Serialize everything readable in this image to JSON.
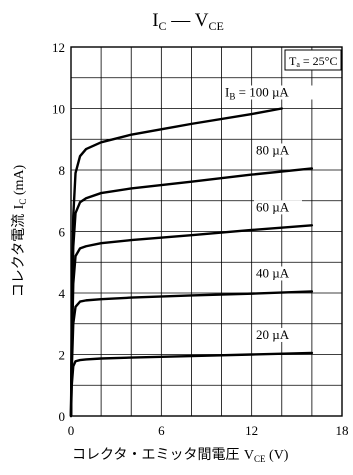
{
  "chart_data": {
    "type": "line",
    "title": {
      "main": "I",
      "main_sub": "C",
      "dash": " — ",
      "second": "V",
      "second_sub": "CE"
    },
    "xlabel": {
      "text": "コレクタ・エミッタ間電圧 ",
      "var": "V",
      "var_sub": "CE",
      "unit": " (V)"
    },
    "ylabel": {
      "text": "コレクタ電流 ",
      "var": "I",
      "var_sub": "C",
      "unit": " (mA)"
    },
    "xlim": [
      0,
      18
    ],
    "ylim": [
      0,
      12
    ],
    "x_ticks": [
      0,
      6,
      12,
      18
    ],
    "y_ticks": [
      0,
      2,
      4,
      6,
      8,
      10,
      12
    ],
    "x_minor_grid_step": 2,
    "y_minor_grid_step": 1,
    "grid": true,
    "annotation": {
      "var": "T",
      "var_sub": "a",
      "value": " = 25°C",
      "placement": "top-right box"
    },
    "series": [
      {
        "name": "20 µA",
        "label_prefix": "",
        "label_sub": "",
        "label_value": "20 µA",
        "points": [
          [
            0,
            0
          ],
          [
            0.05,
            1.0
          ],
          [
            0.15,
            1.62
          ],
          [
            0.3,
            1.78
          ],
          [
            0.6,
            1.82
          ],
          [
            1,
            1.84
          ],
          [
            2,
            1.87
          ],
          [
            4,
            1.9
          ],
          [
            8,
            1.95
          ],
          [
            12,
            2.0
          ],
          [
            16,
            2.05
          ]
        ]
      },
      {
        "name": "40 µA",
        "label_prefix": "",
        "label_sub": "",
        "label_value": "40 µA",
        "points": [
          [
            0,
            0
          ],
          [
            0.05,
            1.5
          ],
          [
            0.15,
            3.0
          ],
          [
            0.3,
            3.55
          ],
          [
            0.6,
            3.72
          ],
          [
            1,
            3.76
          ],
          [
            2,
            3.8
          ],
          [
            4,
            3.85
          ],
          [
            8,
            3.92
          ],
          [
            12,
            3.98
          ],
          [
            16,
            4.05
          ]
        ]
      },
      {
        "name": "60 µA",
        "label_prefix": "",
        "label_sub": "",
        "label_value": "60 µA",
        "points": [
          [
            0,
            0
          ],
          [
            0.05,
            2.0
          ],
          [
            0.15,
            4.3
          ],
          [
            0.3,
            5.2
          ],
          [
            0.6,
            5.45
          ],
          [
            1,
            5.52
          ],
          [
            2,
            5.62
          ],
          [
            4,
            5.72
          ],
          [
            8,
            5.88
          ],
          [
            12,
            6.05
          ],
          [
            16,
            6.2
          ]
        ]
      },
      {
        "name": "80 µA",
        "label_prefix": "",
        "label_sub": "",
        "label_value": "80 µA",
        "points": [
          [
            0,
            0
          ],
          [
            0.05,
            2.5
          ],
          [
            0.15,
            5.5
          ],
          [
            0.3,
            6.6
          ],
          [
            0.6,
            6.95
          ],
          [
            1,
            7.08
          ],
          [
            2,
            7.25
          ],
          [
            4,
            7.4
          ],
          [
            8,
            7.62
          ],
          [
            12,
            7.85
          ],
          [
            16,
            8.05
          ]
        ]
      },
      {
        "name": "I_B = 100 µA",
        "label_prefix": "I",
        "label_sub": "B",
        "label_value": " = 100 µA",
        "points": [
          [
            0,
            0
          ],
          [
            0.05,
            3.0
          ],
          [
            0.15,
            6.5
          ],
          [
            0.3,
            7.9
          ],
          [
            0.6,
            8.45
          ],
          [
            1,
            8.68
          ],
          [
            2,
            8.9
          ],
          [
            4,
            9.15
          ],
          [
            8,
            9.5
          ],
          [
            12,
            9.82
          ],
          [
            14,
            10.0
          ]
        ]
      }
    ]
  }
}
